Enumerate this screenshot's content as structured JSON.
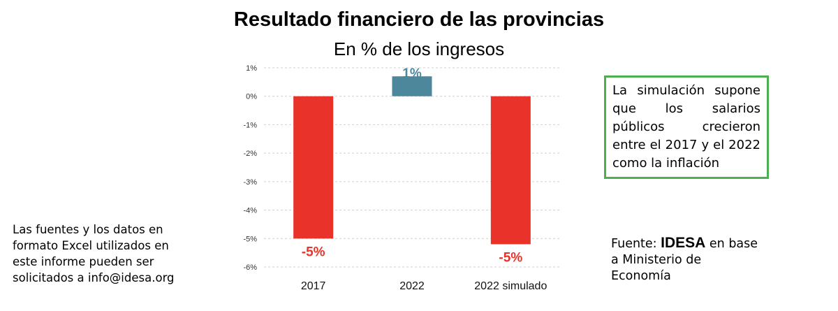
{
  "chart_data": {
    "type": "bar",
    "title": "Resultado financiero de las provincias",
    "subtitle": "En % de los ingresos",
    "categories": [
      "2017",
      "2022",
      "2022 simulado"
    ],
    "values": [
      -5.0,
      0.7,
      -5.2
    ],
    "data_labels": [
      "-5%",
      "1%",
      "-5%"
    ],
    "colors": [
      "#e8322a",
      "#4d879c",
      "#e8322a"
    ],
    "label_colors": [
      "#e8322a",
      "#4d879c",
      "#e8322a"
    ],
    "ylim": [
      -6,
      1
    ],
    "yticks": [
      1,
      0,
      -1,
      -2,
      -3,
      -4,
      -5,
      -6
    ],
    "ytick_labels": [
      "1%",
      "0%",
      "-1%",
      "-2%",
      "-3%",
      "-4%",
      "-5%",
      "-6%"
    ],
    "grid": true,
    "xlabel": "",
    "ylabel": ""
  },
  "note_box": {
    "text": "La simulación supone que los salarios públicos crecieron entre el 2017 y el 2022 como la inflación",
    "border_color": "#4caf50"
  },
  "left_note": {
    "lines": [
      "Las fuentes y los datos en",
      "formato Excel utilizados en",
      "este informe pueden ser",
      "solicitados a info@idesa.org"
    ]
  },
  "source": {
    "prefix": "Fuente: ",
    "brand": "IDESA",
    "suffix": " en base",
    "line2": "a Ministerio de",
    "line3": "Economía"
  }
}
